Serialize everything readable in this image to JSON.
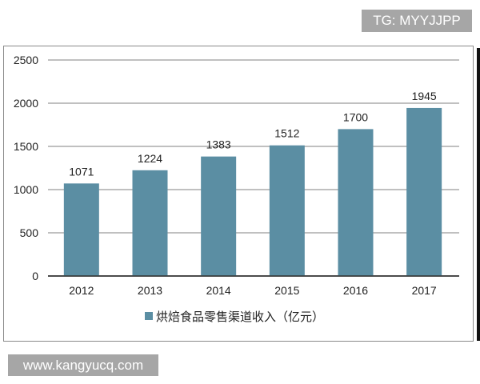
{
  "watermarks": {
    "top": "TG: MYYJJPP",
    "bottom": "www.kangyucq.com"
  },
  "chart_data": {
    "type": "bar",
    "title": "",
    "xlabel": "",
    "ylabel": "",
    "categories": [
      "2012",
      "2013",
      "2014",
      "2015",
      "2016",
      "2017"
    ],
    "series": [
      {
        "name": "烘焙食品零售渠道收入（亿元）",
        "values": [
          1071,
          1224,
          1383,
          1512,
          1700,
          1945
        ],
        "color": "#5b8ea3"
      }
    ],
    "data_labels": [
      "1071",
      "1224",
      "1383",
      "1512",
      "1700",
      "1945"
    ],
    "yticks": [
      "0",
      "500",
      "1000",
      "1500",
      "2000",
      "2500"
    ],
    "ylim": [
      0,
      2500
    ],
    "grid": true,
    "legend": "bottom"
  }
}
